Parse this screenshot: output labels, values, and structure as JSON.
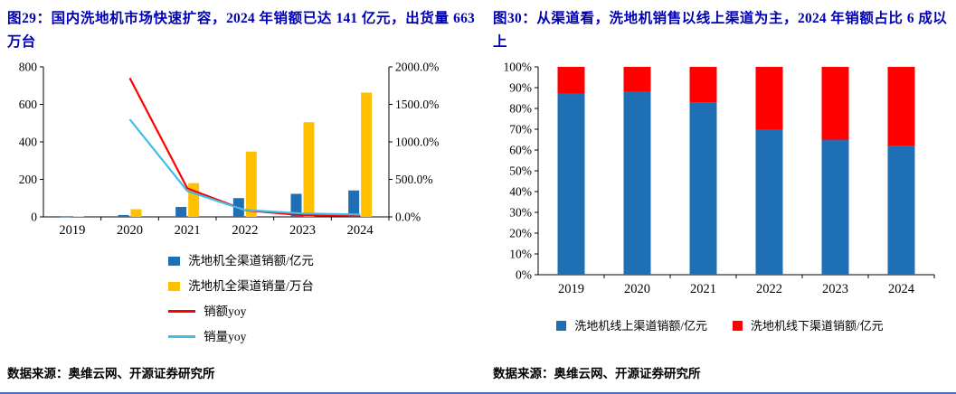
{
  "styles": {
    "title_color": "#0000B4",
    "rule_color": "#4472C4"
  },
  "chart_data": [
    {
      "type": "bar",
      "subtype": "combo-bar-line-dual-axis",
      "title": "图29：国内洗地机市场快速扩容，2024 年销额已达 141 亿元，出货量 663 万台",
      "categories": [
        "2019",
        "2020",
        "2021",
        "2022",
        "2023",
        "2024"
      ],
      "bar_series": [
        {
          "name": "洗地机全渠道销额/亿元",
          "color": "#1F6FB5",
          "axis": "left",
          "values": [
            1,
            10,
            53,
            100,
            123,
            141
          ]
        },
        {
          "name": "洗地机全渠道销量/万台",
          "color": "#FFC000",
          "axis": "left",
          "values": [
            3,
            41,
            180,
            348,
            505,
            663
          ]
        }
      ],
      "line_series": [
        {
          "name": "销额yoy",
          "color": "#FF0000",
          "axis": "right",
          "values": [
            null,
            1850,
            380,
            89,
            23,
            15
          ]
        },
        {
          "name": "销量yoy",
          "color": "#3FBEE8",
          "axis": "right",
          "values": [
            null,
            1300,
            345,
            92,
            46,
            31
          ]
        }
      ],
      "left_axis": {
        "min": 0,
        "max": 800,
        "ticks": [
          0,
          200,
          400,
          600,
          800
        ]
      },
      "right_axis": {
        "min": 0,
        "max": 2000,
        "tick_values": [
          0,
          500,
          1000,
          1500,
          2000
        ],
        "tick_labels": [
          "0.0%",
          "500.0%",
          "1000.0%",
          "1500.0%",
          "2000.0%"
        ]
      },
      "legend_position": "bottom",
      "grid": false,
      "source": "数据来源：奥维云网、开源证券研究所"
    },
    {
      "type": "bar",
      "subtype": "stacked-100",
      "title": "图30：从渠道看，洗地机销售以线上渠道为主，2024 年销额占比 6 成以上",
      "categories": [
        "2019",
        "2020",
        "2021",
        "2022",
        "2023",
        "2024"
      ],
      "series": [
        {
          "name": "洗地机线上渠道销额/亿元",
          "color": "#1F6FB5",
          "values": [
            87,
            88,
            83,
            70,
            65,
            62
          ]
        },
        {
          "name": "洗地机线下渠道销额/亿元",
          "color": "#FF0000",
          "values": [
            13,
            12,
            17,
            30,
            35,
            38
          ]
        }
      ],
      "y_axis": {
        "min": 0,
        "max": 100,
        "tick_labels": [
          "0%",
          "10%",
          "20%",
          "30%",
          "40%",
          "50%",
          "60%",
          "70%",
          "80%",
          "90%",
          "100%"
        ]
      },
      "legend_position": "bottom",
      "grid": false,
      "source": "数据来源：奥维云网、开源证券研究所"
    }
  ]
}
